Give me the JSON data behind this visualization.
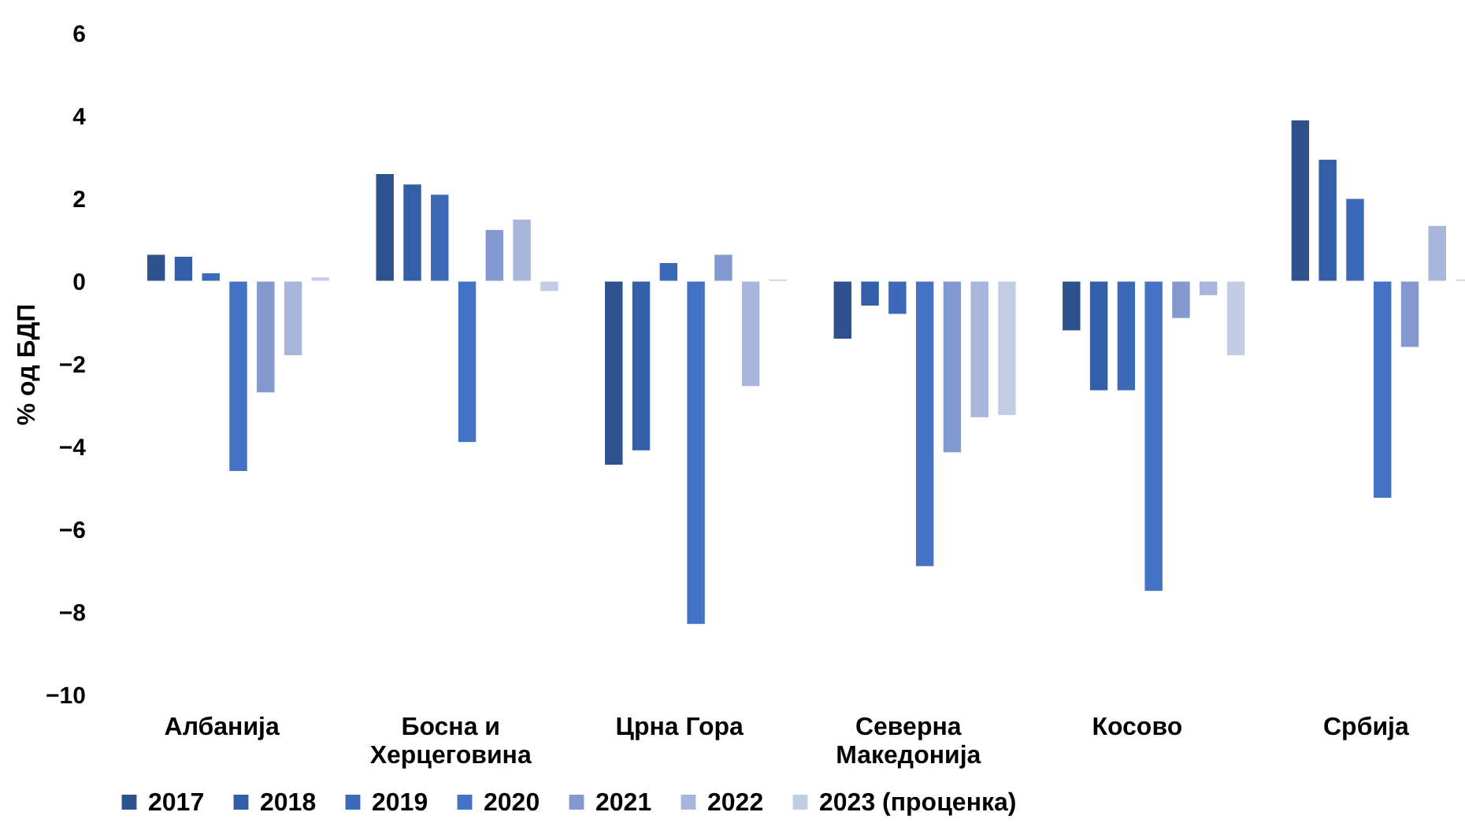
{
  "chart_data": {
    "type": "bar",
    "ylabel": "% од БДП",
    "categories": [
      "Албанија",
      "Босна и Херцеговина",
      "Црна Гора",
      "Северна Македонија",
      "Косово",
      "Србија"
    ],
    "series": [
      {
        "name": "2017",
        "color": "#2f528f",
        "values": [
          0.65,
          2.6,
          -4.45,
          -1.4,
          -1.2,
          3.9
        ]
      },
      {
        "name": "2018",
        "color": "#335ea8",
        "values": [
          0.6,
          2.35,
          -4.1,
          -0.6,
          -2.65,
          2.95
        ]
      },
      {
        "name": "2019",
        "color": "#3c6ab8",
        "values": [
          0.2,
          2.1,
          0.45,
          -0.8,
          -2.65,
          2.0
        ]
      },
      {
        "name": "2020",
        "color": "#4472c4",
        "values": [
          -4.6,
          -3.9,
          -8.3,
          -6.9,
          -7.5,
          -5.25
        ]
      },
      {
        "name": "2021",
        "color": "#8399cf",
        "values": [
          -2.7,
          1.25,
          0.65,
          -4.15,
          -0.9,
          -1.6
        ]
      },
      {
        "name": "2022",
        "color": "#a8b6dc",
        "values": [
          -1.8,
          1.5,
          -2.55,
          -3.3,
          -0.35,
          1.35
        ]
      },
      {
        "name": "2023 (проценка)",
        "color": "#c3cde6",
        "values": [
          0.1,
          -0.25,
          0.05,
          -3.25,
          -1.8,
          0.05
        ]
      }
    ],
    "ylim": [
      -10,
      6
    ],
    "yticks": [
      -10,
      -8,
      -6,
      -4,
      -2,
      0,
      2,
      4,
      6
    ],
    "grid": false,
    "legend": "bottom"
  }
}
